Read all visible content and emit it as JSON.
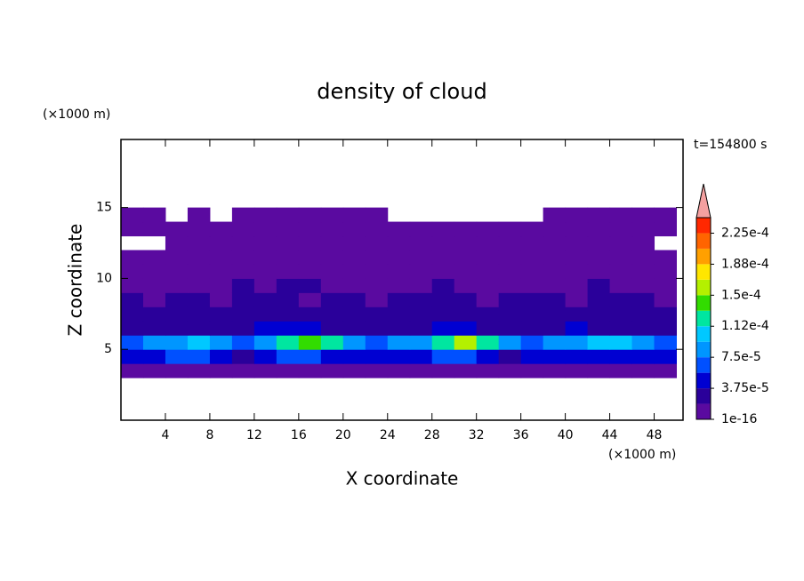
{
  "chart_data": {
    "type": "contour",
    "title": "density of cloud",
    "xlabel": "X coordinate",
    "ylabel": "Z coordinate",
    "x_unit": "(×1000 m)",
    "y_unit": "(×1000 m)",
    "annotation": "t=154800 s",
    "xlim": [
      0,
      50.6
    ],
    "ylim": [
      0,
      19.8
    ],
    "xticks": [
      4,
      8,
      12,
      16,
      20,
      24,
      28,
      32,
      36,
      40,
      44,
      48
    ],
    "yticks": [
      5,
      10,
      15
    ],
    "x": [
      1,
      3,
      5,
      7,
      9,
      11,
      13,
      15,
      17,
      19,
      21,
      23,
      25,
      27,
      29,
      31,
      33,
      35,
      37,
      39,
      41,
      43,
      45,
      47,
      49
    ],
    "y": [
      0.5,
      1.5,
      2.5,
      3.5,
      4.5,
      5.5,
      6.5,
      7.5,
      8.5,
      9.5,
      10.5,
      11.5,
      12.5,
      13.5,
      14.5,
      15.5,
      16.5,
      17.5,
      18.5,
      19.5
    ],
    "z": [
      [
        null,
        null,
        null,
        null,
        null,
        null,
        null,
        null,
        null,
        null,
        null,
        null,
        null,
        null,
        null,
        null,
        null,
        null,
        null,
        null,
        null,
        null,
        null,
        null,
        null
      ],
      [
        null,
        null,
        null,
        null,
        null,
        null,
        null,
        null,
        null,
        null,
        null,
        null,
        null,
        null,
        null,
        null,
        null,
        null,
        null,
        null,
        null,
        null,
        null,
        null,
        null
      ],
      [
        null,
        null,
        null,
        null,
        null,
        null,
        null,
        null,
        null,
        null,
        null,
        null,
        null,
        null,
        null,
        null,
        null,
        null,
        null,
        null,
        null,
        null,
        null,
        null,
        null
      ],
      [
        1e-05,
        1e-05,
        1e-05,
        1e-05,
        1e-05,
        1e-05,
        1e-05,
        1e-05,
        1e-05,
        1e-05,
        1e-05,
        1e-05,
        1e-05,
        1e-05,
        1e-05,
        1e-05,
        1e-05,
        1e-05,
        1e-05,
        1e-05,
        1e-05,
        1e-05,
        1e-05,
        1e-05,
        1e-05
      ],
      [
        4e-05,
        5e-05,
        6e-05,
        6e-05,
        4e-05,
        3e-05,
        5e-05,
        6e-05,
        6e-05,
        5e-05,
        4e-05,
        4e-05,
        5e-05,
        4e-05,
        6e-05,
        6e-05,
        4e-05,
        3e-05,
        4e-05,
        5e-05,
        5e-05,
        4e-05,
        5e-05,
        4e-05,
        4e-05
      ],
      [
        7e-05,
        8e-05,
        9e-05,
        0.0001,
        8e-05,
        7e-05,
        9e-05,
        0.00012,
        0.00014,
        0.00012,
        8e-05,
        7e-05,
        8e-05,
        8e-05,
        0.00012,
        0.00015,
        0.00013,
        8e-05,
        7e-05,
        8e-05,
        9e-05,
        0.00011,
        0.0001,
        8e-05,
        7e-05
      ],
      [
        3e-05,
        3.5e-05,
        3e-05,
        2.5e-05,
        3e-05,
        3e-05,
        4e-05,
        5e-05,
        4e-05,
        3e-05,
        3e-05,
        3e-05,
        3e-05,
        3e-05,
        4e-05,
        4e-05,
        3e-05,
        3e-05,
        3e-05,
        3e-05,
        4e-05,
        3e-05,
        3e-05,
        3e-05,
        3e-05
      ],
      [
        2e-05,
        2e-05,
        2.2e-05,
        2e-05,
        2e-05,
        2.5e-05,
        2.5e-05,
        3e-05,
        2.5e-05,
        2e-05,
        2.2e-05,
        2e-05,
        2e-05,
        2e-05,
        2.5e-05,
        2.5e-05,
        2e-05,
        2e-05,
        2.2e-05,
        2e-05,
        2e-05,
        2.5e-05,
        2e-05,
        2e-05,
        2e-05
      ],
      [
        2e-05,
        1.5e-05,
        2e-05,
        2e-05,
        1.5e-05,
        2e-05,
        2e-05,
        2e-05,
        1.5e-05,
        2e-05,
        2e-05,
        1.5e-05,
        2e-05,
        2e-05,
        2e-05,
        2e-05,
        1.5e-05,
        2e-05,
        2e-05,
        2e-05,
        1.5e-05,
        2e-05,
        2e-05,
        2e-05,
        1.5e-05
      ],
      [
        1e-05,
        1e-05,
        1e-05,
        1e-05,
        1e-05,
        2e-05,
        1e-05,
        2e-05,
        2e-05,
        1e-05,
        1e-05,
        1e-05,
        1e-05,
        1e-05,
        2e-05,
        1e-05,
        1e-05,
        1e-05,
        1e-05,
        1e-05,
        1e-05,
        2e-05,
        1e-05,
        1e-05,
        1e-05
      ],
      [
        1e-05,
        1e-05,
        1e-05,
        1e-05,
        1e-05,
        1e-05,
        1e-05,
        1e-05,
        1e-05,
        1e-05,
        1e-05,
        1e-05,
        1e-05,
        1e-05,
        1e-05,
        1e-05,
        1e-05,
        1e-05,
        1e-05,
        1e-05,
        1e-05,
        1e-05,
        1e-05,
        1e-05,
        1e-05
      ],
      [
        1e-05,
        1e-05,
        1e-05,
        1e-05,
        1e-05,
        1e-05,
        1e-05,
        1e-05,
        1e-05,
        1e-05,
        1e-05,
        1e-05,
        1e-05,
        1e-05,
        1e-05,
        1e-05,
        1e-05,
        1e-05,
        1e-05,
        1e-05,
        1e-05,
        1e-05,
        1e-05,
        1e-05,
        1e-05
      ],
      [
        null,
        null,
        1e-05,
        1e-05,
        1e-05,
        1e-05,
        1e-05,
        1e-05,
        1e-05,
        1e-05,
        1e-05,
        1e-05,
        1e-05,
        1e-05,
        1e-05,
        1e-05,
        1e-05,
        1e-05,
        1e-05,
        1e-05,
        1e-05,
        1e-05,
        1e-05,
        1e-05,
        null
      ],
      [
        1e-05,
        1e-05,
        1e-05,
        1e-05,
        1e-05,
        1e-05,
        1e-05,
        1e-05,
        1e-05,
        1e-05,
        1e-05,
        1e-05,
        1e-05,
        1e-05,
        1e-05,
        1e-05,
        1e-05,
        1e-05,
        1e-05,
        1e-05,
        1e-05,
        1e-05,
        1e-05,
        1e-05,
        1e-05
      ],
      [
        1e-05,
        1e-05,
        null,
        1e-05,
        null,
        1e-05,
        1e-05,
        1e-05,
        1e-05,
        1e-05,
        1e-05,
        1e-05,
        null,
        null,
        null,
        null,
        null,
        null,
        null,
        1e-05,
        1e-05,
        1e-05,
        1e-05,
        1e-05,
        1e-05
      ],
      [
        null,
        null,
        null,
        null,
        null,
        null,
        null,
        null,
        null,
        null,
        null,
        null,
        null,
        null,
        null,
        null,
        null,
        null,
        null,
        null,
        null,
        null,
        null,
        null,
        null
      ],
      [
        null,
        null,
        null,
        null,
        null,
        null,
        null,
        null,
        null,
        null,
        null,
        null,
        null,
        null,
        null,
        null,
        null,
        null,
        null,
        null,
        null,
        null,
        null,
        null,
        null
      ],
      [
        null,
        null,
        null,
        null,
        null,
        null,
        null,
        null,
        null,
        null,
        null,
        null,
        null,
        null,
        null,
        null,
        null,
        null,
        null,
        null,
        null,
        null,
        null,
        null,
        null
      ],
      [
        null,
        null,
        null,
        null,
        null,
        null,
        null,
        null,
        null,
        null,
        null,
        null,
        null,
        null,
        null,
        null,
        null,
        null,
        null,
        null,
        null,
        null,
        null,
        null,
        null
      ],
      [
        null,
        null,
        null,
        null,
        null,
        null,
        null,
        null,
        null,
        null,
        null,
        null,
        null,
        null,
        null,
        null,
        null,
        null,
        null,
        null,
        null,
        null,
        null,
        null,
        null
      ]
    ],
    "levels": [
      1e-16,
      1.875e-05,
      3.75e-05,
      5.625e-05,
      7.5e-05,
      9.375e-05,
      0.0001125,
      0.00013125,
      0.00015,
      0.00016875,
      0.0001875,
      0.00020625,
      0.000225,
      0.00024375
    ],
    "colors": [
      "#5a0aa0",
      "#2a009a",
      "#0000d2",
      "#0050ff",
      "#0096ff",
      "#00c8ff",
      "#00e6a0",
      "#32dc00",
      "#b4f000",
      "#ffe600",
      "#ffa000",
      "#ff6400",
      "#ff2800"
    ],
    "extend_color": "#f4a0a0",
    "colorbar_ticks": [
      {
        "value": 1e-16,
        "label": "1e-16"
      },
      {
        "value": 3.75e-05,
        "label": "3.75e-5"
      },
      {
        "value": 7.5e-05,
        "label": "7.5e-5"
      },
      {
        "value": 0.0001125,
        "label": "1.12e-4"
      },
      {
        "value": 0.00015,
        "label": "1.5e-4"
      },
      {
        "value": 0.0001875,
        "label": "1.88e-4"
      },
      {
        "value": 0.000225,
        "label": "2.25e-4"
      }
    ]
  }
}
